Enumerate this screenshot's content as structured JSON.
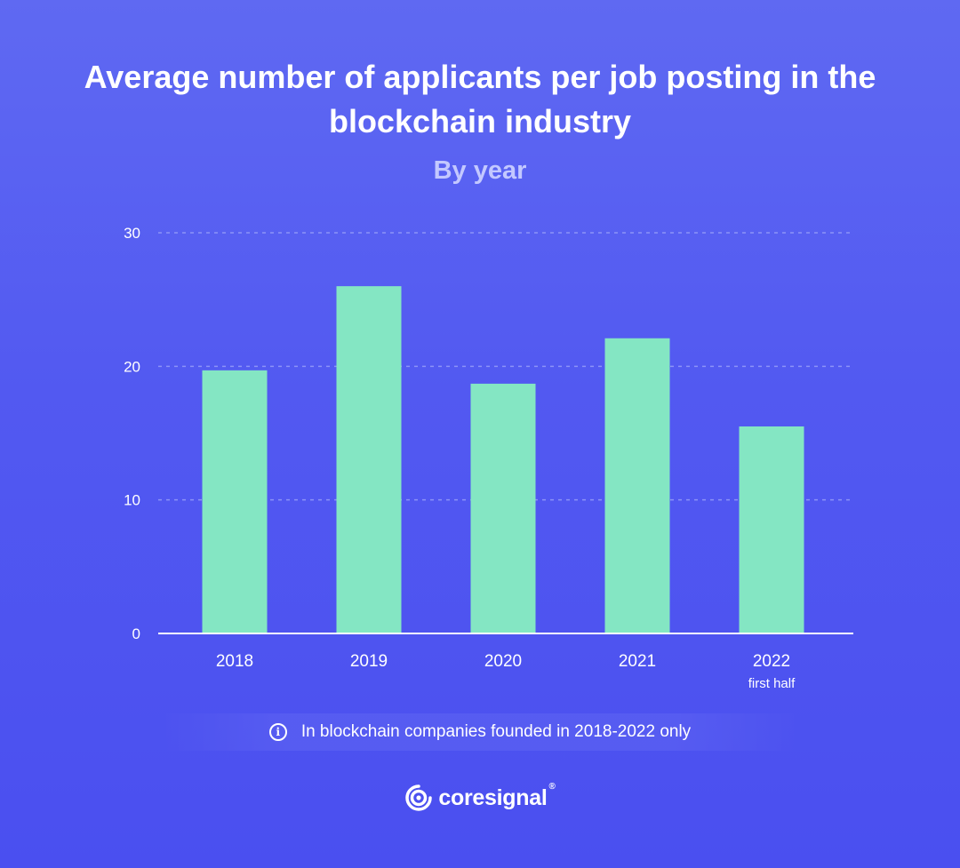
{
  "title": "Average number of applicants per job posting in the blockchain industry",
  "subtitle": "By year",
  "note": {
    "icon": "info-icon",
    "text": "In blockchain companies founded in 2018-2022 only"
  },
  "logo": {
    "name": "coresignal",
    "mark": "®"
  },
  "colors": {
    "bar": "#84e6c3",
    "grid": "#8c93f7",
    "axis": "#ffffff",
    "subtitle": "#c3c8ff"
  },
  "chart_data": {
    "type": "bar",
    "title": "Average number of applicants per job posting in the blockchain industry",
    "subtitle": "By year",
    "categories": [
      "2018",
      "2019",
      "2020",
      "2021",
      "2022"
    ],
    "category_sublabels": [
      "",
      "",
      "",
      "",
      "first half"
    ],
    "values": [
      19.7,
      26.0,
      18.7,
      22.1,
      15.5
    ],
    "yticks": [
      0,
      10,
      20,
      30
    ],
    "ylim": [
      0,
      30
    ],
    "grid": true,
    "xlabel": "",
    "ylabel": ""
  }
}
